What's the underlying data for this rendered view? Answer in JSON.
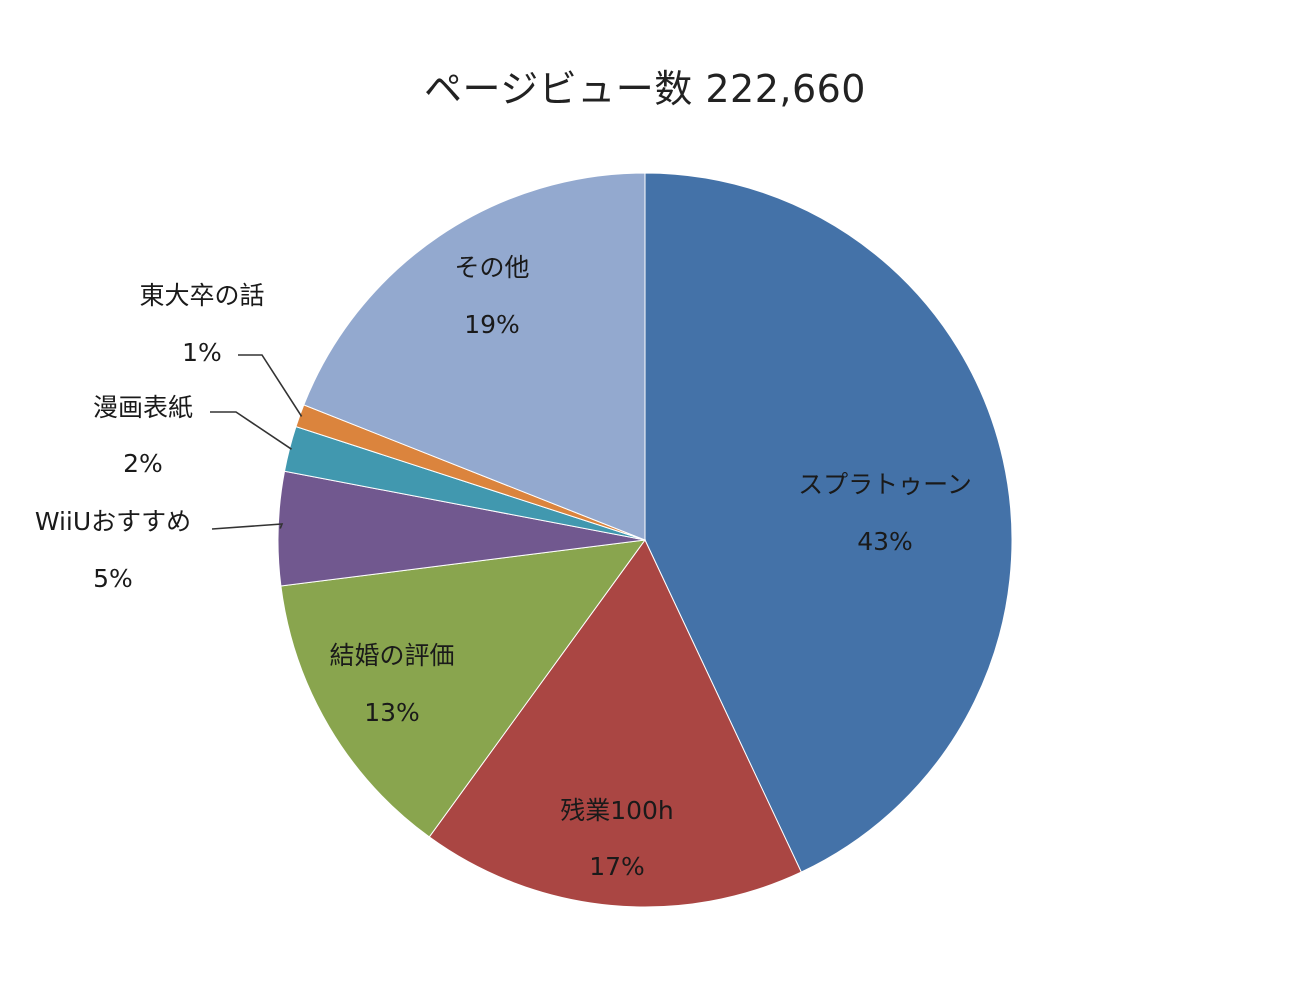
{
  "chart_data": {
    "type": "pie",
    "title": "ページビュー数 222,660",
    "slices": [
      {
        "name": "スプラトゥーン",
        "value": 43,
        "label": "43%",
        "color": "#4472a8"
      },
      {
        "name": "残業100h",
        "value": 17,
        "label": "17%",
        "color": "#aa4643"
      },
      {
        "name": "結婚の評価",
        "value": 13,
        "label": "13%",
        "color": "#89a54e"
      },
      {
        "name": "WiiUおすすめ",
        "value": 5,
        "label": "5%",
        "color": "#71588f"
      },
      {
        "name": "漫画表紙",
        "value": 2,
        "label": "2%",
        "color": "#4198af"
      },
      {
        "name": "東大卒の話",
        "value": 1,
        "label": "1%",
        "color": "#db843d"
      },
      {
        "name": "その他",
        "value": 19,
        "label": "19%",
        "color": "#93a9cf"
      }
    ],
    "start_angle": "12 o'clock",
    "direction": "clockwise",
    "legend": "none"
  }
}
